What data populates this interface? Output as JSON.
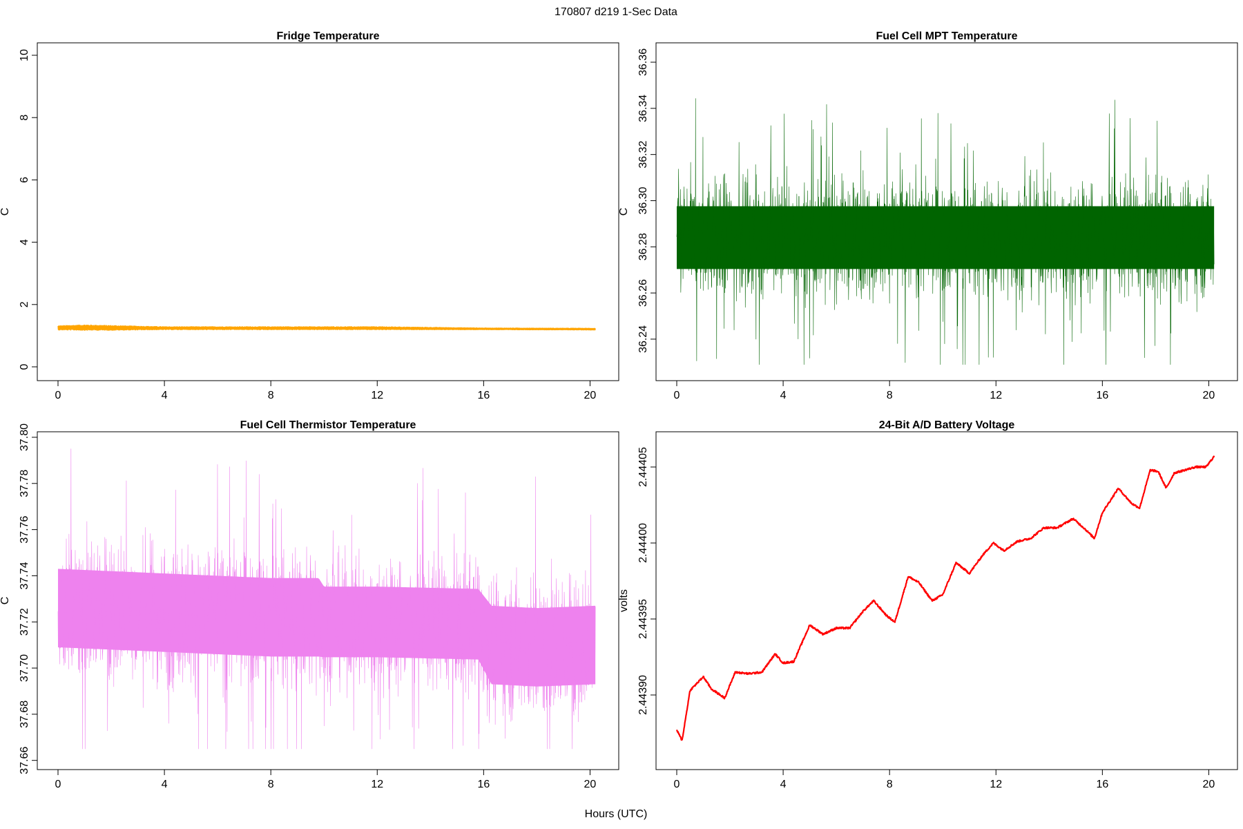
{
  "page": {
    "main_title": "170807   d219   1-Sec Data",
    "xlabel": "Hours (UTC)"
  },
  "chart_data": [
    {
      "id": "fridge",
      "type": "line",
      "title": "Fridge Temperature",
      "xlabel": "",
      "ylabel": "C",
      "color": "#FFA500",
      "xlim": [
        0,
        20.3
      ],
      "ylim": [
        0,
        10
      ],
      "xticks": [
        0,
        4,
        8,
        12,
        16,
        20
      ],
      "yticks": [
        0,
        2,
        4,
        6,
        8,
        10
      ],
      "ytick_labels": [
        "0",
        "2",
        "4",
        "6",
        "8",
        "10"
      ],
      "style": "band",
      "x": [
        0,
        1.0,
        2.0,
        4.0,
        8.0,
        12.0,
        14.0,
        16.0,
        20.2
      ],
      "y": [
        1.25,
        1.26,
        1.25,
        1.24,
        1.24,
        1.24,
        1.23,
        1.22,
        1.21
      ],
      "band_halfwidth": [
        0.07,
        0.09,
        0.08,
        0.05,
        0.05,
        0.05,
        0.04,
        0.03,
        0.03
      ]
    },
    {
      "id": "mpt",
      "type": "line",
      "title": "Fuel Cell MPT Temperature",
      "xlabel": "",
      "ylabel": "C",
      "color": "#006400",
      "xlim": [
        0,
        20.3
      ],
      "ylim": [
        36.228,
        36.363
      ],
      "xticks": [
        0,
        4,
        8,
        12,
        16,
        20
      ],
      "yticks": [
        36.24,
        36.26,
        36.28,
        36.3,
        36.32,
        36.34,
        36.36
      ],
      "ytick_labels": [
        "36.24",
        "36.26",
        "36.28",
        "36.30",
        "36.32",
        "36.34",
        "36.36"
      ],
      "style": "noise",
      "x": [
        0,
        4,
        8,
        12,
        16,
        20.2
      ],
      "y": [
        36.284,
        36.284,
        36.284,
        36.284,
        36.284,
        36.284
      ],
      "band_halfwidth": [
        0.016,
        0.016,
        0.016,
        0.016,
        0.016,
        0.016
      ],
      "min": 36.229,
      "max": 36.361
    },
    {
      "id": "thermistor",
      "type": "line",
      "title": "Fuel Cell Thermistor Temperature",
      "xlabel": "",
      "ylabel": "C",
      "color": "#EE82EE",
      "xlim": [
        0,
        20.3
      ],
      "ylim": [
        37.662,
        37.797
      ],
      "xticks": [
        0,
        4,
        8,
        12,
        16,
        20
      ],
      "yticks": [
        37.66,
        37.68,
        37.7,
        37.72,
        37.74,
        37.76,
        37.78,
        37.8
      ],
      "ytick_labels": [
        "37.66",
        "37.68",
        "37.70",
        "37.72",
        "37.74",
        "37.76",
        "37.78",
        "37.80"
      ],
      "style": "noise",
      "x": [
        0,
        4,
        8,
        9.8,
        10.0,
        12,
        15.8,
        16.3,
        18,
        20.2
      ],
      "y": [
        37.726,
        37.724,
        37.722,
        37.722,
        37.72,
        37.72,
        37.719,
        37.71,
        37.709,
        37.71
      ],
      "band_halfwidth": [
        0.02,
        0.02,
        0.02,
        0.02,
        0.018,
        0.018,
        0.018,
        0.02,
        0.02,
        0.02
      ],
      "min": 37.665,
      "max": 37.795
    },
    {
      "id": "battery",
      "type": "line",
      "title": "24-Bit A/D Battery Voltage",
      "xlabel": "",
      "ylabel": "volts",
      "color": "#FF0000",
      "xlim": [
        0,
        20.3
      ],
      "ylim": [
        2.44386,
        2.444065
      ],
      "xticks": [
        0,
        4,
        8,
        12,
        16,
        20
      ],
      "yticks": [
        2.4439,
        2.44395,
        2.444,
        2.44405
      ],
      "ytick_labels": [
        "2.44390",
        "2.44395",
        "2.44400",
        "2.44405"
      ],
      "style": "thin",
      "x": [
        0,
        0.2,
        0.5,
        1.0,
        1.3,
        1.8,
        2.2,
        2.7,
        3.2,
        3.7,
        4.0,
        4.4,
        5.0,
        5.5,
        6.0,
        6.5,
        7.0,
        7.4,
        7.9,
        8.2,
        8.7,
        9.1,
        9.6,
        10.0,
        10.5,
        11.0,
        11.5,
        11.9,
        12.3,
        12.8,
        13.3,
        13.8,
        14.3,
        14.9,
        15.3,
        15.7,
        16.0,
        16.6,
        17.1,
        17.4,
        17.8,
        18.1,
        18.4,
        18.7,
        19.1,
        19.5,
        19.9,
        20.2
      ],
      "y": [
        2.443877,
        2.44387,
        2.443903,
        2.443912,
        2.443904,
        2.443898,
        2.443915,
        2.443914,
        2.443915,
        2.443927,
        2.443921,
        2.443922,
        2.443946,
        2.44394,
        2.443944,
        2.443944,
        2.443955,
        2.443962,
        2.443952,
        2.443948,
        2.443978,
        2.443974,
        2.443962,
        2.443966,
        2.443987,
        2.44398,
        2.443992,
        2.444,
        2.443995,
        2.444001,
        2.444003,
        2.44401,
        2.44401,
        2.444016,
        2.44401,
        2.444003,
        2.44402,
        2.444036,
        2.444026,
        2.444023,
        2.444048,
        2.444047,
        2.444036,
        2.444046,
        2.444048,
        2.44405,
        2.44405,
        2.444057
      ]
    }
  ]
}
